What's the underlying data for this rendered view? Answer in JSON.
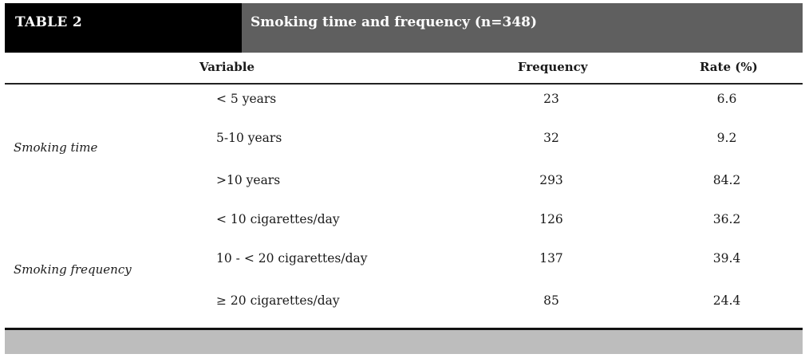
{
  "header": {
    "label": "TABLE 2",
    "title": "Smoking time and frequency (n=348)"
  },
  "columns": {
    "variable": "Variable",
    "frequency": "Frequency",
    "rate": "Rate (%)"
  },
  "groups": {
    "smoking_time": "Smoking time",
    "smoking_frequency": "Smoking frequency"
  },
  "rows": [
    {
      "category": "< 5 years",
      "frequency": "23",
      "rate": "6.6"
    },
    {
      "category": "5-10 years",
      "frequency": "32",
      "rate": "9.2"
    },
    {
      "category": ">10 years",
      "frequency": "293",
      "rate": "84.2"
    },
    {
      "category": "< 10 cigarettes/day",
      "frequency": "126",
      "rate": "36.2"
    },
    {
      "category": "10 - < 20 cigarettes/day",
      "frequency": "137",
      "rate": "39.4"
    },
    {
      "category": "≥ 20 cigarettes/day",
      "frequency": "85",
      "rate": "24.4"
    }
  ]
}
